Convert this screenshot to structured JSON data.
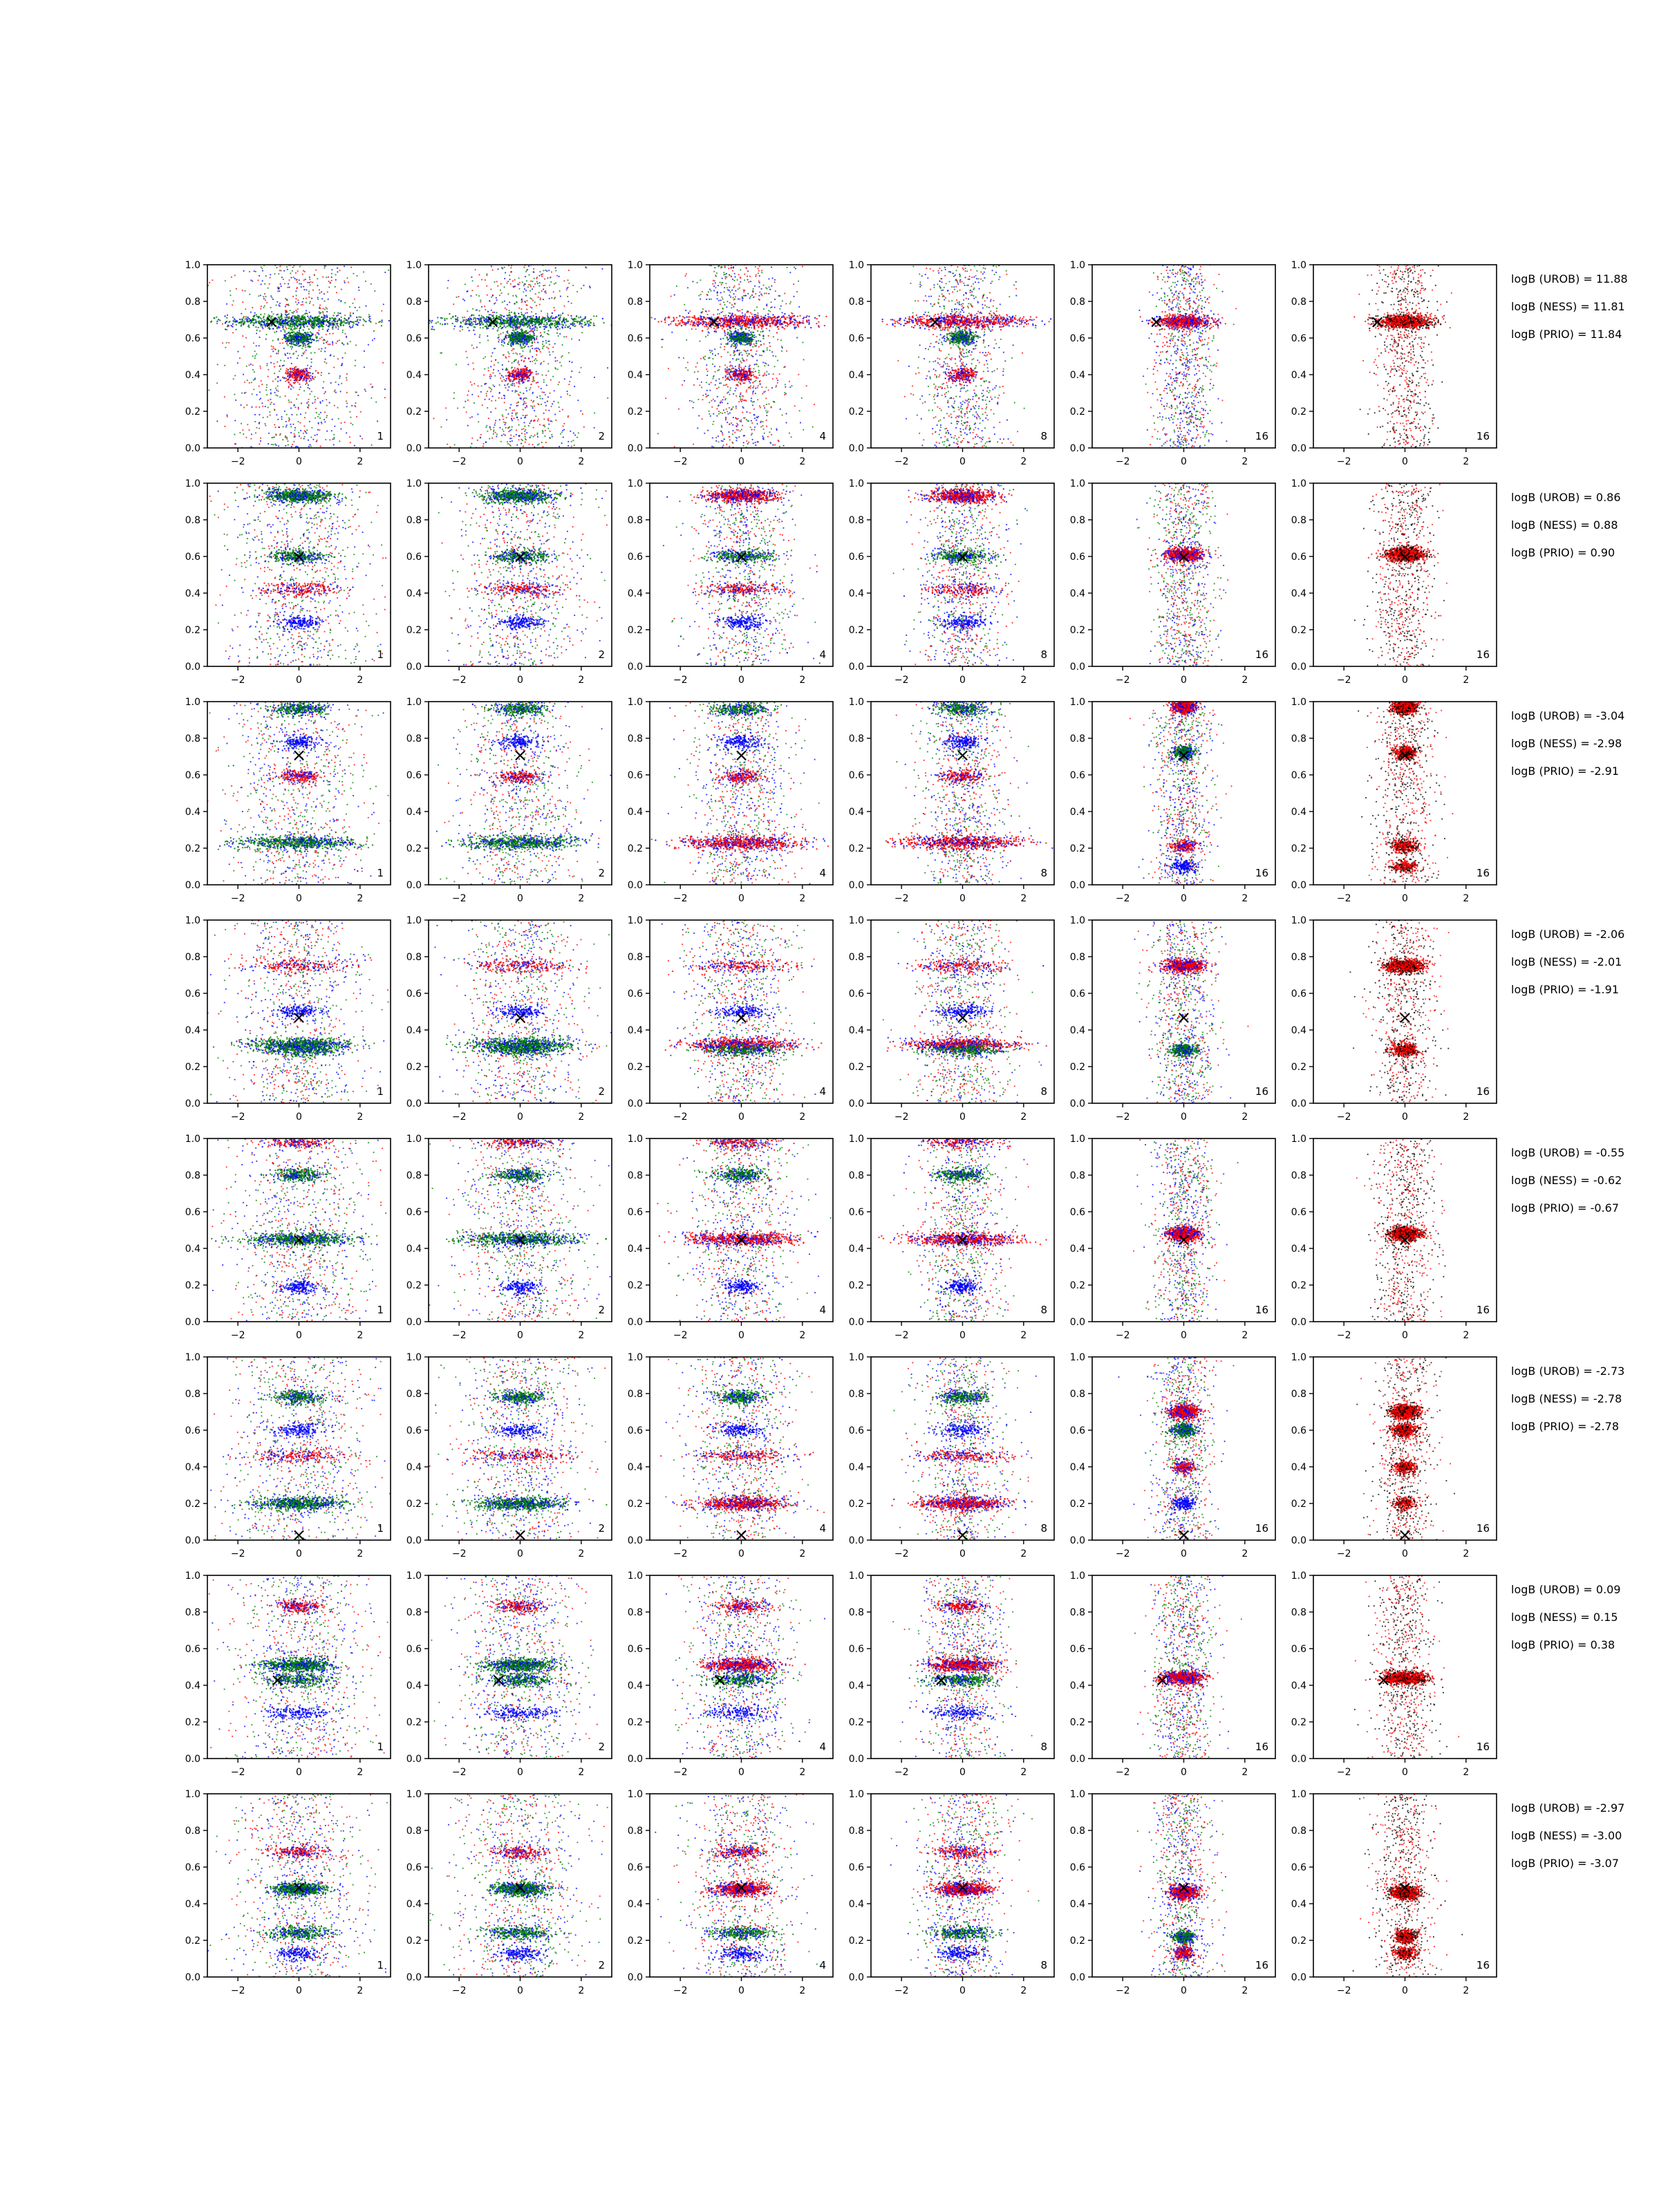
{
  "figure": {
    "colors": {
      "blue": "#0000ff",
      "green": "#008000",
      "red": "#ff0000",
      "black": "#000000"
    },
    "marker_symbol": "×"
  },
  "chart_data": {
    "type": "scatter",
    "grid": false,
    "rows": 8,
    "cols": 6,
    "xlim": [
      -3,
      3
    ],
    "ylim": [
      0,
      1
    ],
    "x_ticks": [
      -2,
      0,
      2
    ],
    "y_ticks": [
      0.0,
      0.2,
      0.4,
      0.6,
      0.8,
      1.0
    ],
    "x_tick_labels": [
      "−2",
      "0",
      "2"
    ],
    "y_tick_labels": [
      "0.0",
      "0.2",
      "0.4",
      "0.6",
      "0.8",
      "1.0"
    ],
    "panel_labels": [
      "1",
      "2",
      "4",
      "8",
      "16",
      "16"
    ],
    "rows_data": [
      {
        "marker": [
          -0.9,
          0.69
        ],
        "bands": [
          [
            0.69,
            2.6
          ],
          [
            0.6,
            0.5
          ],
          [
            0.4,
            0.5
          ]
        ],
        "bands_late": [
          [
            0.69,
            1.0
          ]
        ],
        "logB": [
          "logB (UROB) = 11.88",
          "logB (NESS) = 11.81",
          "logB (PRIO) = 11.84"
        ]
      },
      {
        "marker": [
          0.0,
          0.6
        ],
        "bands": [
          [
            0.93,
            1.3
          ],
          [
            0.6,
            1.1
          ],
          [
            0.42,
            1.4
          ],
          [
            0.24,
            0.8
          ]
        ],
        "bands_late": [
          [
            0.61,
            0.7
          ]
        ],
        "logB": [
          "logB (UROB) = 0.86",
          "logB (NESS) = 0.88",
          "logB (PRIO) = 0.90"
        ]
      },
      {
        "marker": [
          0.0,
          0.71
        ],
        "bands": [
          [
            0.23,
            2.2
          ],
          [
            0.96,
            1.0
          ],
          [
            0.59,
            0.8
          ],
          [
            0.78,
            0.7
          ]
        ],
        "bands_late": [
          [
            0.97,
            0.4
          ],
          [
            0.72,
            0.4
          ],
          [
            0.21,
            0.5
          ],
          [
            0.1,
            0.5
          ]
        ],
        "logB": [
          "logB (UROB) = -3.04",
          "logB (NESS) = -2.98",
          "logB (PRIO) = -2.91"
        ]
      },
      {
        "marker": [
          0.0,
          0.47
        ],
        "bands": [
          [
            0.32,
            1.9
          ],
          [
            0.29,
            1.4
          ],
          [
            0.75,
            1.8
          ],
          [
            0.5,
            0.9
          ]
        ],
        "bands_late": [
          [
            0.75,
            0.7
          ],
          [
            0.29,
            0.5
          ]
        ],
        "logB": [
          "logB (UROB) = -2.06",
          "logB (NESS) = -2.01",
          "logB (PRIO) = -1.91"
        ]
      },
      {
        "marker": [
          0.0,
          0.45
        ],
        "bands": [
          [
            0.45,
            2.0
          ],
          [
            0.8,
            0.9
          ],
          [
            0.98,
            1.3
          ],
          [
            0.19,
            0.6
          ]
        ],
        "bands_late": [
          [
            0.48,
            0.6
          ]
        ],
        "logB": [
          "logB (UROB) = -0.55",
          "logB (NESS) = -0.62",
          "logB (PRIO) = -0.67"
        ]
      },
      {
        "marker": [
          0.0,
          0.03
        ],
        "bands": [
          [
            0.2,
            1.6
          ],
          [
            0.78,
            0.9
          ],
          [
            0.46,
            1.9
          ],
          [
            0.6,
            0.9
          ]
        ],
        "bands_late": [
          [
            0.7,
            0.5
          ],
          [
            0.6,
            0.5
          ],
          [
            0.4,
            0.4
          ],
          [
            0.2,
            0.4
          ]
        ],
        "logB": [
          "logB (UROB) = -2.73",
          "logB (NESS) = -2.78",
          "logB (PRIO) = -2.78"
        ]
      },
      {
        "marker": [
          -0.7,
          0.43
        ],
        "bands": [
          [
            0.51,
            1.3
          ],
          [
            0.43,
            1.2
          ],
          [
            0.83,
            0.9
          ],
          [
            0.25,
            1.3
          ]
        ],
        "bands_late": [
          [
            0.44,
            0.8
          ]
        ],
        "logB": [
          "logB (UROB) = 0.09",
          "logB (NESS) = 0.15",
          "logB (PRIO) = 0.38"
        ]
      },
      {
        "marker": [
          0.0,
          0.49
        ],
        "bands": [
          [
            0.48,
            1.0
          ],
          [
            0.24,
            1.2
          ],
          [
            0.68,
            1.0
          ],
          [
            0.13,
            0.8
          ]
        ],
        "bands_late": [
          [
            0.46,
            0.5
          ],
          [
            0.22,
            0.4
          ],
          [
            0.13,
            0.4
          ]
        ],
        "logB": [
          "logB (UROB) = -2.97",
          "logB (NESS) = -3.00",
          "logB (PRIO) = -3.07"
        ]
      }
    ]
  }
}
